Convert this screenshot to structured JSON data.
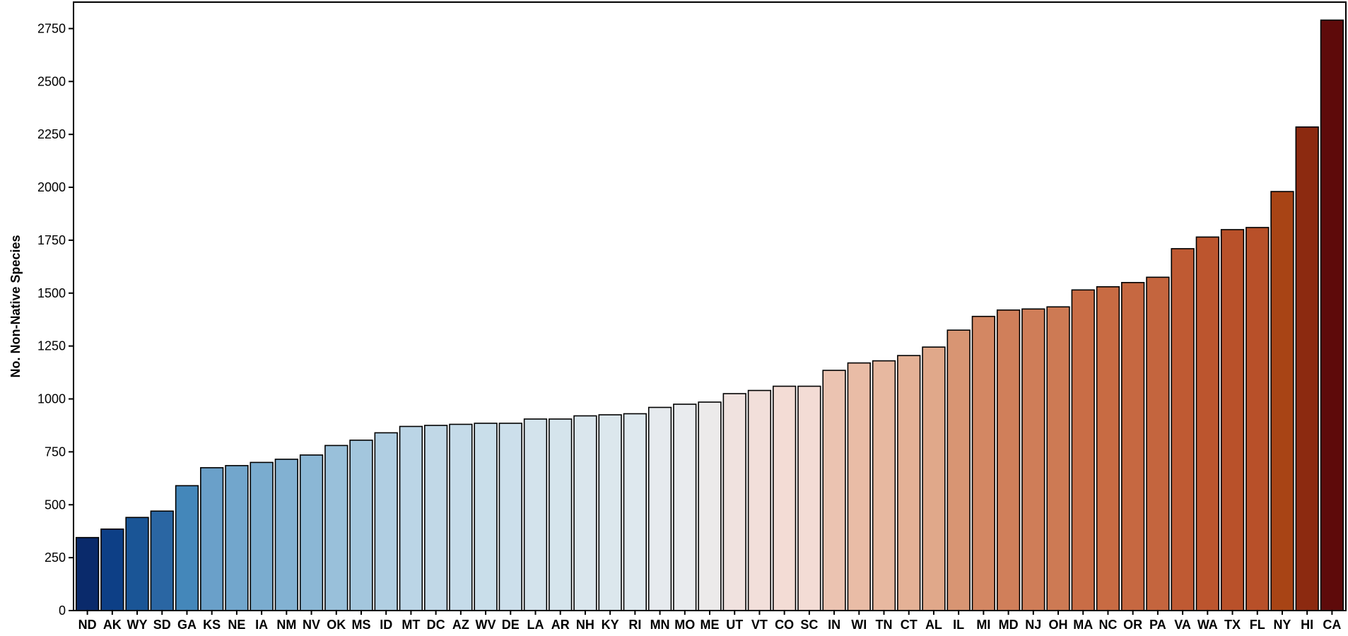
{
  "chart_data": {
    "type": "bar",
    "title": "",
    "xlabel": "",
    "ylabel": "No. Non-Native Species",
    "ylim": [
      0,
      2875
    ],
    "yticks": [
      0,
      250,
      500,
      750,
      1000,
      1250,
      1500,
      1750,
      2000,
      2250,
      2500,
      2750
    ],
    "grid": false,
    "legend": "none",
    "categories": [
      "ND",
      "AK",
      "WY",
      "SD",
      "GA",
      "KS",
      "NE",
      "IA",
      "NM",
      "NV",
      "OK",
      "MS",
      "ID",
      "MT",
      "DC",
      "AZ",
      "WV",
      "DE",
      "LA",
      "AR",
      "NH",
      "KY",
      "RI",
      "MN",
      "MO",
      "ME",
      "UT",
      "VT",
      "CO",
      "SC",
      "IN",
      "WI",
      "TN",
      "CT",
      "AL",
      "IL",
      "MI",
      "MD",
      "NJ",
      "OH",
      "MA",
      "NC",
      "OR",
      "PA",
      "VA",
      "WA",
      "TX",
      "FL",
      "NY",
      "HI",
      "CA"
    ],
    "values": [
      345,
      385,
      440,
      470,
      590,
      675,
      685,
      700,
      715,
      735,
      780,
      805,
      840,
      870,
      875,
      880,
      885,
      885,
      905,
      905,
      920,
      925,
      930,
      960,
      975,
      985,
      1025,
      1040,
      1060,
      1060,
      1135,
      1170,
      1180,
      1205,
      1245,
      1325,
      1390,
      1420,
      1425,
      1435,
      1515,
      1530,
      1550,
      1575,
      1710,
      1765,
      1800,
      1810,
      1980,
      2285,
      2790
    ],
    "colors": [
      "#0a2a6b",
      "#0d3f86",
      "#1a5596",
      "#2a66a3",
      "#4487ba",
      "#6aa0c9",
      "#72a6cc",
      "#7aaccf",
      "#82b1d2",
      "#8bb7d5",
      "#99c0da",
      "#a3c6dd",
      "#b0cee2",
      "#bbd5e6",
      "#c1d8e7",
      "#c5dbe9",
      "#c9deea",
      "#ccdfeb",
      "#d3e3ec",
      "#d5e4ec",
      "#dae6ed",
      "#dce7ed",
      "#dee8ee",
      "#e6eaee",
      "#e9ebee",
      "#eceaea",
      "#f0e2df",
      "#f2dfda",
      "#f3dcd5",
      "#f3dcd5",
      "#ebc3b1",
      "#e9bca6",
      "#e7b8a0",
      "#e4b196",
      "#e0a88a",
      "#d89573",
      "#d38763",
      "#d07f5a",
      "#cf7d58",
      "#cd7a54",
      "#c96d46",
      "#c86b43",
      "#c66841",
      "#c4653e",
      "#bf5a33",
      "#bc552e",
      "#b9512a",
      "#b85029",
      "#a84415",
      "#8c2a10",
      "#5e0a0a"
    ]
  }
}
